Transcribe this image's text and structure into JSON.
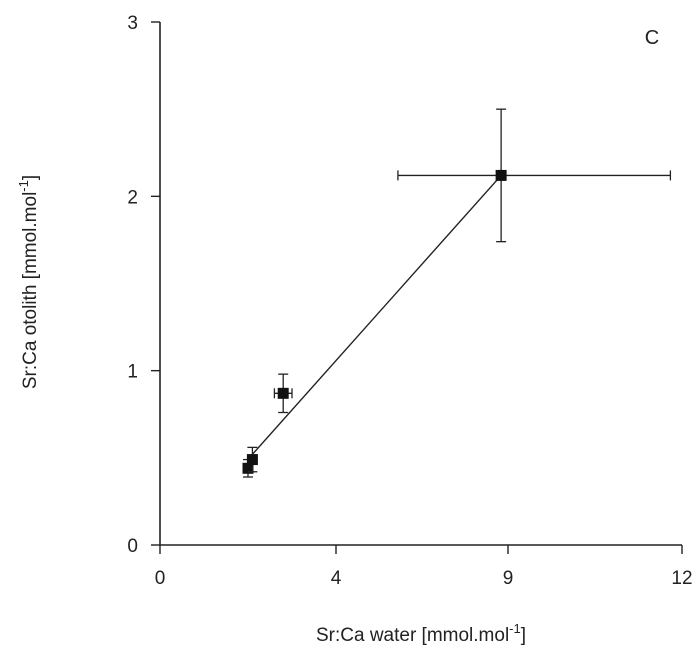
{
  "chart_data": {
    "type": "scatter",
    "panel_label": "C",
    "xlabel": "Sr:Ca water [mmol.mol",
    "xlabel_sup": "-1",
    "xlabel_end": "]",
    "ylabel": "Sr:Ca otolith [mmol.mol",
    "ylabel_sup": "-1",
    "ylabel_end": "]",
    "x_tick_labels": [
      "0",
      "4",
      "9",
      "12"
    ],
    "y_tick_labels": [
      "0",
      "1",
      "2",
      "3"
    ],
    "ylim": [
      0,
      3
    ],
    "grid": false,
    "legend": "none",
    "points": [
      {
        "x": 2.0,
        "y": 0.44,
        "x_err": 0.1,
        "y_err": 0.05
      },
      {
        "x": 2.1,
        "y": 0.49,
        "x_err": 0.1,
        "y_err": 0.07
      },
      {
        "x": 2.8,
        "y": 0.87,
        "x_err": 0.2,
        "y_err": 0.11
      },
      {
        "x": 8.8,
        "y": 2.12,
        "x_err": 3.0,
        "y_err": 0.38
      }
    ],
    "fit_line": {
      "x": [
        2.1,
        8.8
      ],
      "y": [
        0.52,
        2.12
      ]
    }
  }
}
